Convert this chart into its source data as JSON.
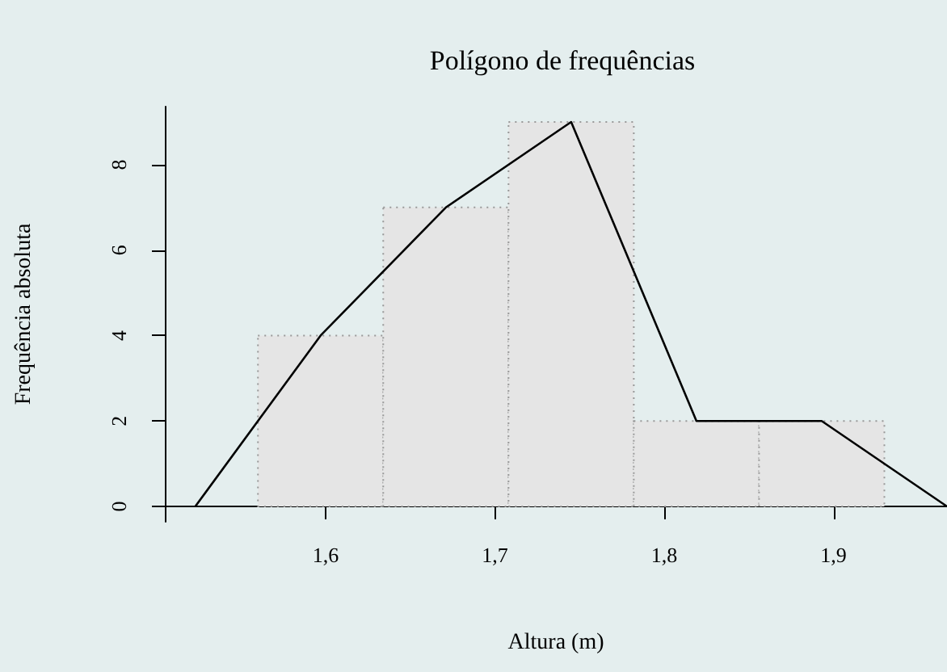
{
  "chart_data": {
    "type": "histogram",
    "title": "Polígono de frequências",
    "xlabel": "Altura (m)",
    "ylabel": "Frequência absoluta",
    "series": [
      {
        "type": "histogram",
        "bins": [
          1.56,
          1.634,
          1.708,
          1.782,
          1.856,
          1.93
        ],
        "values": [
          4,
          7,
          9,
          2,
          2
        ],
        "color": "#e5e5e5"
      },
      {
        "type": "line",
        "x": [
          1.523,
          1.597,
          1.671,
          1.745,
          1.819,
          1.893,
          1.967
        ],
        "values": [
          0,
          4,
          7,
          9,
          2,
          2,
          0
        ],
        "color": "#000000"
      }
    ],
    "xlim": [
      1.505,
      1.967
    ],
    "xticks": [
      {
        "value": 1.6,
        "label": "1,6"
      },
      {
        "value": 1.7,
        "label": "1,7"
      },
      {
        "value": 1.8,
        "label": "1,8"
      },
      {
        "value": 1.9,
        "label": "1,9"
      }
    ],
    "ylim": [
      -0.36,
      9.36
    ],
    "yticks": [
      0,
      2,
      4,
      6,
      8
    ],
    "grid": false,
    "marker": "none",
    "line_style": "solid"
  }
}
